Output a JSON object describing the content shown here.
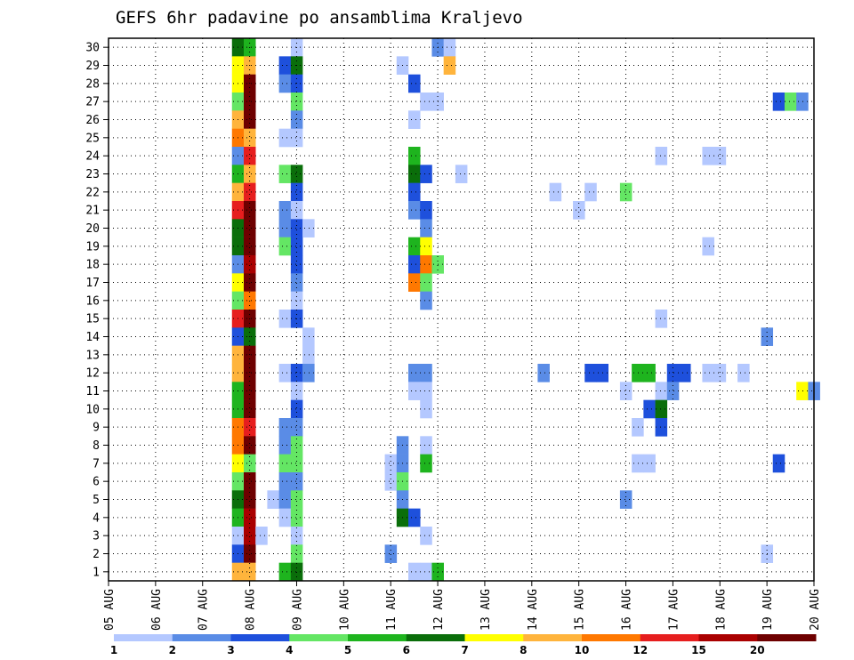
{
  "chart_data": {
    "type": "heatmap",
    "title": "GEFS 6hr padavine po ansamblima Kraljevo",
    "xlabel": "",
    "ylabel": "",
    "x_ticks": [
      "05 AUG",
      "06 AUG",
      "07 AUG",
      "08 AUG",
      "09 AUG",
      "10 AUG",
      "11 AUG",
      "12 AUG",
      "13 AUG",
      "14 AUG",
      "15 AUG",
      "16 AUG",
      "17 AUG",
      "18 AUG",
      "19 AUG",
      "20 AUG"
    ],
    "y_ticks": [
      "1",
      "2",
      "3",
      "4",
      "5",
      "6",
      "7",
      "8",
      "9",
      "10",
      "11",
      "12",
      "13",
      "14",
      "15",
      "16",
      "17",
      "18",
      "19",
      "20",
      "21",
      "22",
      "23",
      "24",
      "25",
      "26",
      "27",
      "28",
      "29",
      "30"
    ],
    "xlim": [
      0,
      60
    ],
    "ylim": [
      0.5,
      30.5
    ],
    "x_unit": "6-hour steps from 05 AUG 00Z",
    "grid": true,
    "colorbar": {
      "colors": [
        "#b4c8ff",
        "#5a8ce6",
        "#1e50dc",
        "#64e664",
        "#1eb41e",
        "#0a6e0a",
        "#ffff00",
        "#ffb43c",
        "#ff7800",
        "#e61e1e",
        "#aa0000",
        "#6e0000"
      ],
      "labels": [
        "1",
        "2",
        "3",
        "4",
        "5",
        "6",
        "7",
        "8",
        "10",
        "12",
        "15",
        "20"
      ]
    },
    "cells": [
      [
        30,
        [
          [
            11,
            5
          ],
          [
            12,
            4
          ],
          [
            16,
            0
          ],
          [
            28,
            1
          ],
          [
            29,
            0
          ]
        ]
      ],
      [
        29,
        [
          [
            11,
            6
          ],
          [
            12,
            7
          ],
          [
            15,
            2
          ],
          [
            16,
            5
          ],
          [
            29,
            7
          ],
          [
            25,
            0
          ]
        ]
      ],
      [
        28,
        [
          [
            11,
            6
          ],
          [
            12,
            11
          ],
          [
            15,
            1
          ],
          [
            16,
            2
          ],
          [
            26,
            2
          ]
        ]
      ],
      [
        27,
        [
          [
            11,
            3
          ],
          [
            12,
            11
          ],
          [
            16,
            3
          ],
          [
            27,
            0
          ],
          [
            28,
            0
          ],
          [
            57,
            2
          ],
          [
            58,
            3
          ],
          [
            59,
            1
          ]
        ]
      ],
      [
        26,
        [
          [
            11,
            7
          ],
          [
            12,
            11
          ],
          [
            16,
            1
          ],
          [
            26,
            0
          ]
        ]
      ],
      [
        25,
        [
          [
            11,
            8
          ],
          [
            12,
            7
          ],
          [
            15,
            0
          ],
          [
            16,
            0
          ]
        ]
      ],
      [
        24,
        [
          [
            11,
            1
          ],
          [
            12,
            9
          ],
          [
            26,
            4
          ],
          [
            47,
            0
          ],
          [
            51,
            0
          ],
          [
            52,
            0
          ]
        ]
      ],
      [
        23,
        [
          [
            11,
            4
          ],
          [
            12,
            7
          ],
          [
            15,
            3
          ],
          [
            16,
            5
          ],
          [
            26,
            5
          ],
          [
            27,
            2
          ],
          [
            30,
            0
          ]
        ]
      ],
      [
        22,
        [
          [
            11,
            7
          ],
          [
            12,
            9
          ],
          [
            16,
            2
          ],
          [
            26,
            2
          ],
          [
            38,
            0
          ],
          [
            41,
            0
          ],
          [
            44,
            3
          ]
        ]
      ],
      [
        21,
        [
          [
            11,
            9
          ],
          [
            12,
            11
          ],
          [
            15,
            1
          ],
          [
            16,
            0
          ],
          [
            26,
            1
          ],
          [
            27,
            2
          ],
          [
            40,
            0
          ]
        ]
      ],
      [
        20,
        [
          [
            11,
            5
          ],
          [
            12,
            11
          ],
          [
            15,
            1
          ],
          [
            16,
            2
          ],
          [
            17,
            0
          ],
          [
            27,
            1
          ]
        ]
      ],
      [
        19,
        [
          [
            11,
            5
          ],
          [
            12,
            11
          ],
          [
            15,
            3
          ],
          [
            16,
            2
          ],
          [
            26,
            4
          ],
          [
            27,
            6
          ],
          [
            51,
            0
          ]
        ]
      ],
      [
        18,
        [
          [
            11,
            1
          ],
          [
            12,
            10
          ],
          [
            16,
            2
          ],
          [
            26,
            2
          ],
          [
            27,
            8
          ],
          [
            28,
            3
          ]
        ]
      ],
      [
        17,
        [
          [
            11,
            6
          ],
          [
            12,
            11
          ],
          [
            16,
            1
          ],
          [
            26,
            8
          ],
          [
            27,
            3
          ]
        ]
      ],
      [
        16,
        [
          [
            11,
            3
          ],
          [
            12,
            8
          ],
          [
            16,
            0
          ],
          [
            27,
            1
          ]
        ]
      ],
      [
        15,
        [
          [
            11,
            9
          ],
          [
            12,
            11
          ],
          [
            15,
            0
          ],
          [
            16,
            2
          ],
          [
            47,
            0
          ]
        ]
      ],
      [
        14,
        [
          [
            11,
            2
          ],
          [
            12,
            5
          ],
          [
            17,
            0
          ],
          [
            56,
            1
          ]
        ]
      ],
      [
        13,
        [
          [
            11,
            7
          ],
          [
            12,
            11
          ],
          [
            17,
            0
          ]
        ]
      ],
      [
        12,
        [
          [
            11,
            7
          ],
          [
            12,
            11
          ],
          [
            15,
            0
          ],
          [
            16,
            2
          ],
          [
            17,
            1
          ],
          [
            26,
            1
          ],
          [
            27,
            1
          ],
          [
            37,
            1
          ],
          [
            41,
            2
          ],
          [
            42,
            2
          ],
          [
            45,
            4
          ],
          [
            46,
            4
          ],
          [
            48,
            2
          ],
          [
            49,
            2
          ],
          [
            51,
            0
          ],
          [
            52,
            0
          ],
          [
            54,
            0
          ]
        ]
      ],
      [
        11,
        [
          [
            11,
            4
          ],
          [
            12,
            11
          ],
          [
            16,
            0
          ],
          [
            26,
            0
          ],
          [
            27,
            0
          ],
          [
            44,
            0
          ],
          [
            47,
            0
          ],
          [
            48,
            1
          ],
          [
            59,
            6
          ],
          [
            60,
            1
          ]
        ]
      ],
      [
        10,
        [
          [
            11,
            4
          ],
          [
            12,
            11
          ],
          [
            16,
            2
          ],
          [
            27,
            0
          ],
          [
            46,
            2
          ],
          [
            47,
            5
          ]
        ]
      ],
      [
        9,
        [
          [
            11,
            8
          ],
          [
            12,
            9
          ],
          [
            15,
            1
          ],
          [
            16,
            1
          ],
          [
            45,
            0
          ],
          [
            47,
            2
          ]
        ]
      ],
      [
        8,
        [
          [
            11,
            8
          ],
          [
            12,
            11
          ],
          [
            15,
            1
          ],
          [
            16,
            3
          ],
          [
            25,
            1
          ],
          [
            27,
            0
          ]
        ]
      ],
      [
        7,
        [
          [
            11,
            6
          ],
          [
            12,
            3
          ],
          [
            15,
            3
          ],
          [
            16,
            3
          ],
          [
            24,
            0
          ],
          [
            25,
            1
          ],
          [
            27,
            4
          ],
          [
            45,
            0
          ],
          [
            46,
            0
          ],
          [
            57,
            2
          ]
        ]
      ],
      [
        6,
        [
          [
            11,
            3
          ],
          [
            12,
            11
          ],
          [
            15,
            1
          ],
          [
            16,
            1
          ],
          [
            24,
            0
          ],
          [
            25,
            3
          ]
        ]
      ],
      [
        5,
        [
          [
            11,
            5
          ],
          [
            12,
            11
          ],
          [
            14,
            0
          ],
          [
            15,
            1
          ],
          [
            16,
            3
          ],
          [
            25,
            1
          ],
          [
            44,
            1
          ]
        ]
      ],
      [
        4,
        [
          [
            11,
            4
          ],
          [
            12,
            10
          ],
          [
            15,
            0
          ],
          [
            16,
            3
          ],
          [
            25,
            5
          ],
          [
            26,
            2
          ]
        ]
      ],
      [
        3,
        [
          [
            11,
            0
          ],
          [
            12,
            10
          ],
          [
            13,
            0
          ],
          [
            16,
            0
          ],
          [
            27,
            0
          ]
        ]
      ],
      [
        2,
        [
          [
            11,
            2
          ],
          [
            12,
            11
          ],
          [
            16,
            3
          ],
          [
            24,
            1
          ],
          [
            56,
            0
          ]
        ]
      ],
      [
        1,
        [
          [
            11,
            7
          ],
          [
            12,
            7
          ],
          [
            15,
            4
          ],
          [
            16,
            5
          ],
          [
            26,
            0
          ],
          [
            27,
            0
          ],
          [
            28,
            4
          ]
        ]
      ]
    ]
  }
}
